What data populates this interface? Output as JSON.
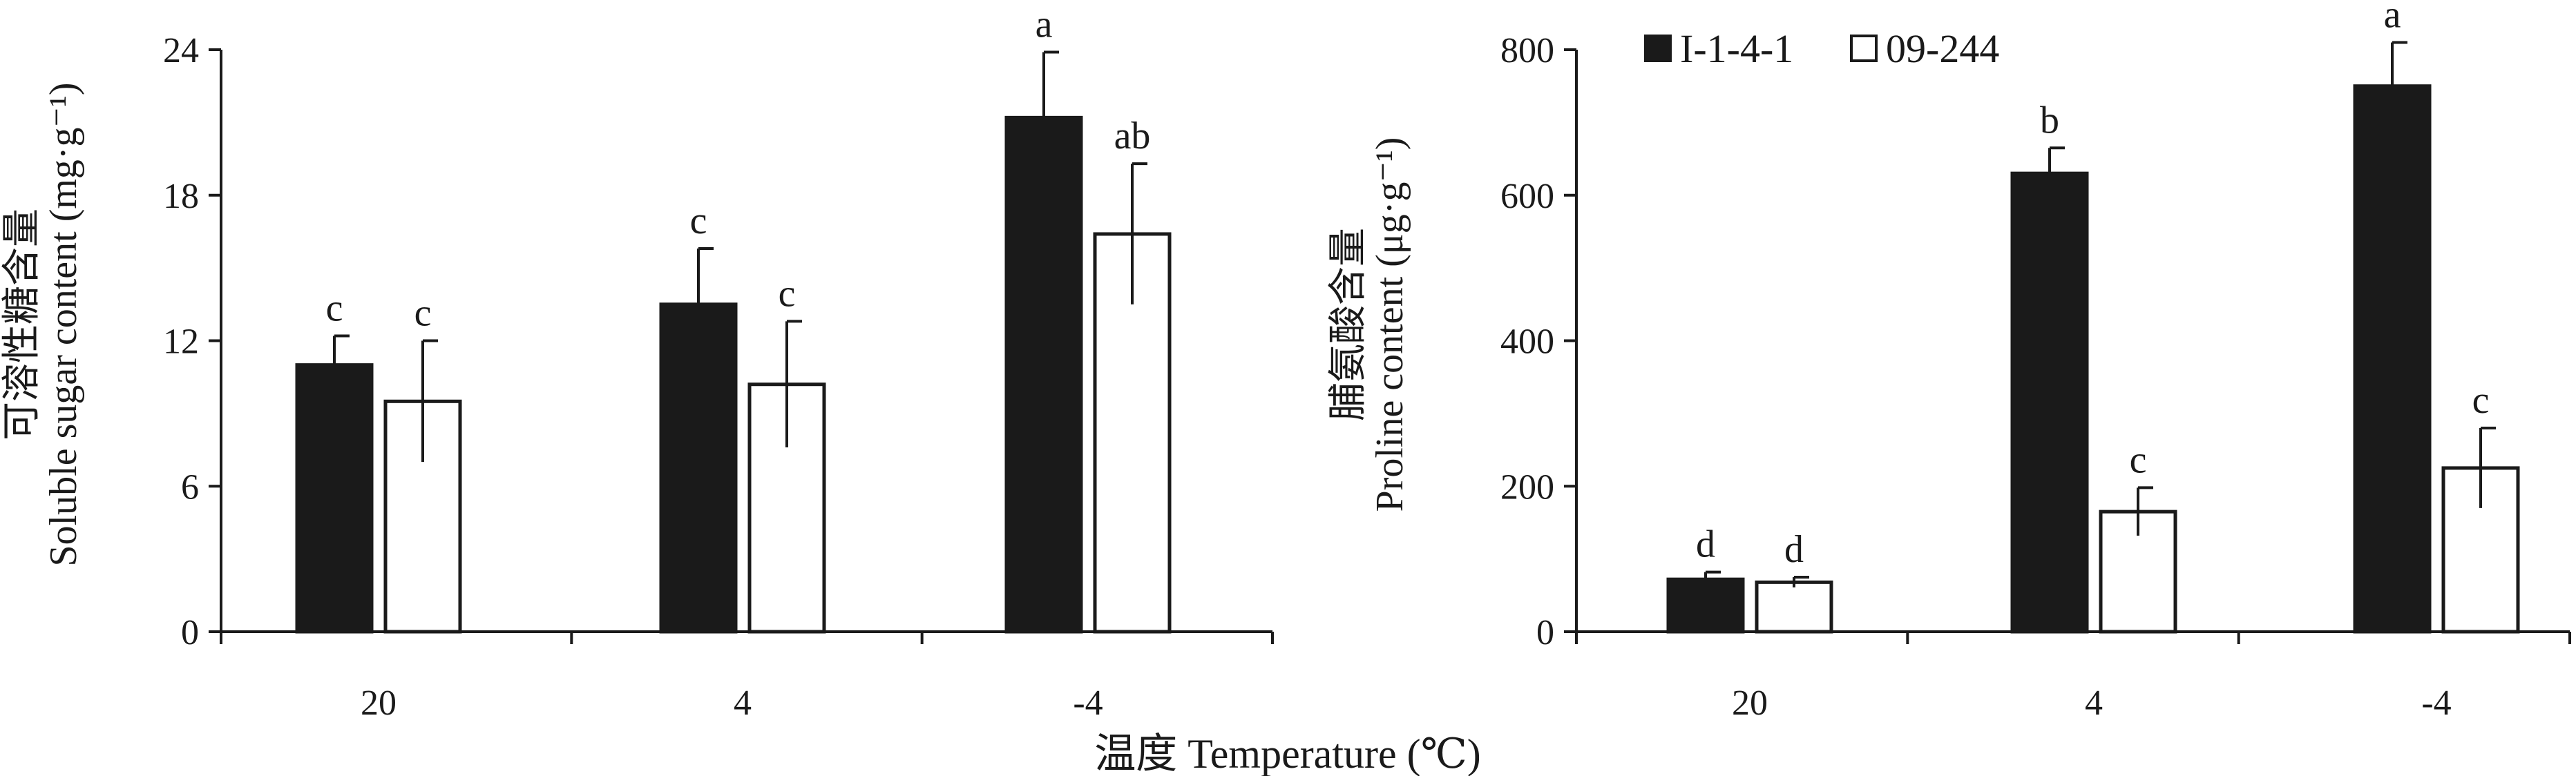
{
  "xlabel": "温度 Temperature (℃)",
  "legend": [
    "I-1-4-1",
    "09-244"
  ],
  "colors": {
    "series1": "#1a1a1a",
    "series2": "#ffffff",
    "stroke": "#1a1a1a"
  },
  "chart_data": [
    {
      "type": "bar",
      "categories": [
        "20",
        "4",
        "-4"
      ],
      "ylim": [
        0,
        24
      ],
      "yticks": [
        "0",
        "6",
        "12",
        "18",
        "24"
      ],
      "ylabel_cn": "可溶性糖含量",
      "ylabel_en": "Soluble sugar content (mg·g⁻¹)",
      "series": [
        {
          "name": "I-1-4-1",
          "values": [
            11.0,
            13.5,
            21.2
          ],
          "errors": [
            1.2,
            2.3,
            2.7
          ],
          "letters": [
            "c",
            "c",
            "a"
          ]
        },
        {
          "name": "09-244",
          "values": [
            9.5,
            10.2,
            16.4
          ],
          "errors": [
            2.5,
            2.6,
            2.9
          ],
          "letters": [
            "c",
            "c",
            "ab"
          ]
        }
      ]
    },
    {
      "type": "bar",
      "categories": [
        "20",
        "4",
        "-4"
      ],
      "ylim": [
        0,
        800
      ],
      "yticks": [
        "0",
        "200",
        "400",
        "600",
        "800"
      ],
      "ylabel_cn": "脯氨酸含量",
      "ylabel_en": "Proline content (μg·g⁻¹)",
      "series": [
        {
          "name": "I-1-4-1",
          "values": [
            72,
            630,
            750
          ],
          "errors": [
            10,
            35,
            60
          ],
          "letters": [
            "d",
            "b",
            "a"
          ]
        },
        {
          "name": "09-244",
          "values": [
            68,
            165,
            225
          ],
          "errors": [
            7,
            33,
            55
          ],
          "letters": [
            "d",
            "c",
            "c"
          ]
        }
      ]
    }
  ]
}
